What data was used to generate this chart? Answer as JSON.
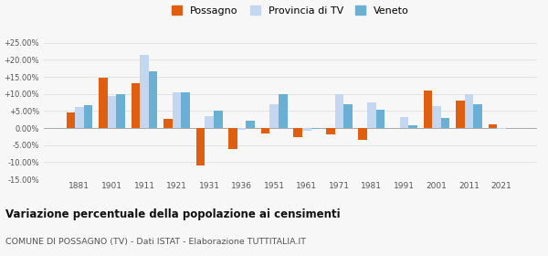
{
  "years": [
    1881,
    1901,
    1911,
    1921,
    1931,
    1936,
    1951,
    1961,
    1971,
    1981,
    1991,
    2001,
    2011,
    2021
  ],
  "possagno": [
    4.5,
    14.8,
    13.0,
    2.7,
    -10.9,
    -6.2,
    -1.5,
    -2.8,
    -2.0,
    -3.5,
    0.0,
    11.0,
    8.0,
    1.2
  ],
  "provincia_tv": [
    6.2,
    9.5,
    21.5,
    10.5,
    3.5,
    -0.5,
    7.0,
    -0.8,
    9.8,
    7.6,
    3.2,
    6.5,
    10.0,
    -0.2
  ],
  "veneto": [
    6.7,
    10.0,
    16.5,
    10.5,
    5.0,
    2.2,
    9.9,
    -0.4,
    7.0,
    5.4,
    0.8,
    3.0,
    7.0,
    0.0
  ],
  "color_possagno": "#e05e10",
  "color_provincia": "#c5d7f0",
  "color_veneto": "#6ab0d4",
  "title": "Variazione percentuale della popolazione ai censimenti",
  "subtitle": "COMUNE DI POSSAGNO (TV) - Dati ISTAT - Elaborazione TUTTITALIA.IT",
  "ylim": [
    -15,
    26.25
  ],
  "yticks": [
    -15,
    -10,
    -5,
    0,
    5,
    10,
    15,
    20,
    25
  ],
  "ytick_labels": [
    "-15.00%",
    "-10.00%",
    "-5.00%",
    "0.00%",
    "+5.00%",
    "+10.00%",
    "+15.00%",
    "+20.00%",
    "+25.00%"
  ],
  "bar_width": 0.27,
  "bg_color": "#f7f7f7",
  "grid_color": "#e0e0e0"
}
